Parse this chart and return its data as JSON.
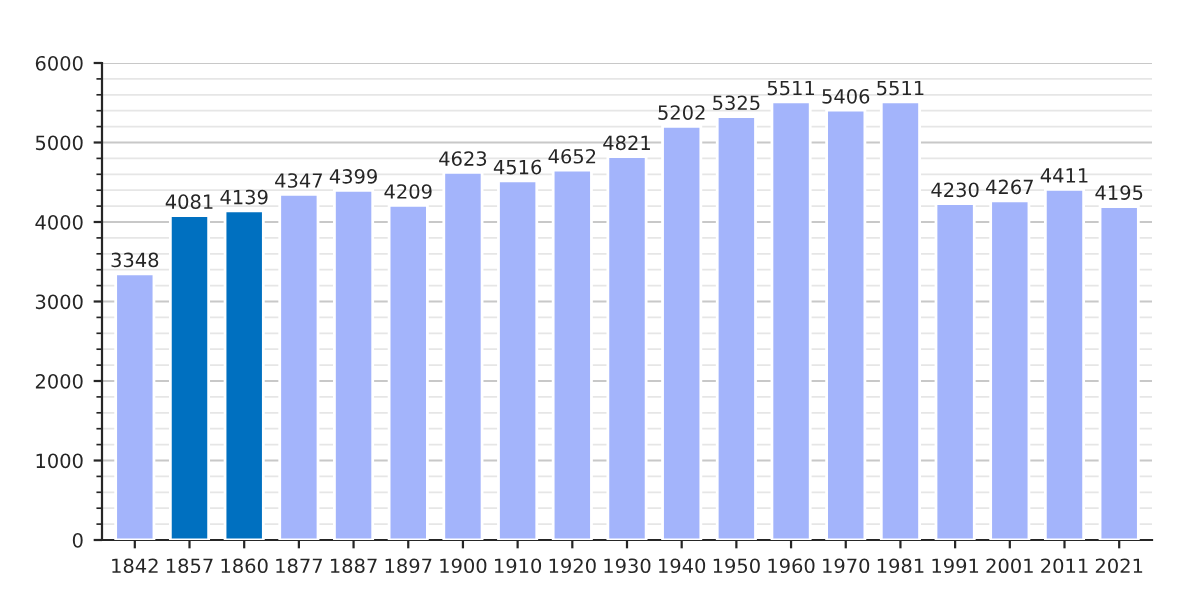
{
  "chart_data": {
    "type": "bar",
    "categories": [
      "1842",
      "1857",
      "1860",
      "1877",
      "1887",
      "1897",
      "1900",
      "1910",
      "1920",
      "1930",
      "1940",
      "1950",
      "1960",
      "1970",
      "1981",
      "1991",
      "2001",
      "2011",
      "2021"
    ],
    "values": [
      3348,
      4081,
      4139,
      4347,
      4399,
      4209,
      4623,
      4516,
      4652,
      4821,
      5202,
      5325,
      5511,
      5406,
      5511,
      4230,
      4267,
      4411,
      4195
    ],
    "colors": [
      "#a3b4fb",
      "#0070c0",
      "#0070c0",
      "#a3b4fb",
      "#a3b4fb",
      "#a3b4fb",
      "#a3b4fb",
      "#a3b4fb",
      "#a3b4fb",
      "#a3b4fb",
      "#a3b4fb",
      "#a3b4fb",
      "#a3b4fb",
      "#a3b4fb",
      "#a3b4fb",
      "#a3b4fb",
      "#a3b4fb",
      "#a3b4fb",
      "#a3b4fb"
    ],
    "ylim": [
      0,
      6000
    ],
    "yticks": [
      0,
      1000,
      2000,
      3000,
      4000,
      5000,
      6000
    ],
    "grid": "y",
    "data_labels": true
  }
}
